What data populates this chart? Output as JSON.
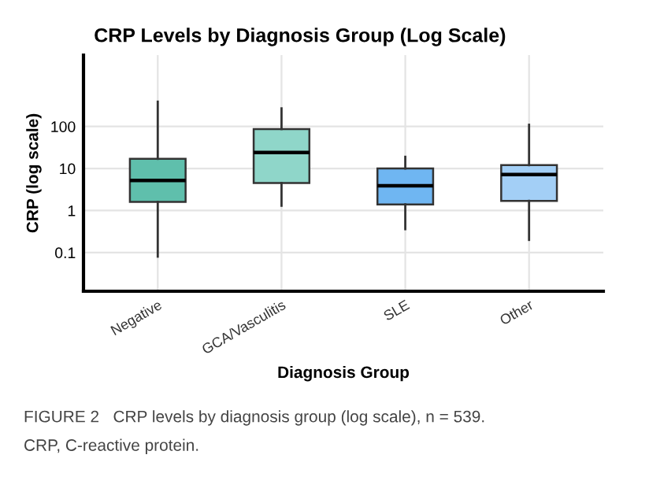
{
  "chart_data": {
    "type": "box",
    "title": "CRP Levels by Diagnosis Group (Log Scale)",
    "xlabel": "Diagnosis Group",
    "ylabel": "CRP (log scale)",
    "categories": [
      "Negative",
      "GCA/Vasculitis",
      "SLE",
      "Other"
    ],
    "colors": [
      "#5fbfac",
      "#8fd6c9",
      "#6fb6f2",
      "#a3cff6"
    ],
    "boxes": [
      {
        "low": 0.08,
        "q1": 1.6,
        "median": 5.2,
        "q3": 17,
        "high": 390
      },
      {
        "low": 1.3,
        "q1": 4.5,
        "median": 24,
        "q3": 87,
        "high": 270
      },
      {
        "low": 0.36,
        "q1": 1.4,
        "median": 3.9,
        "q3": 10,
        "high": 19
      },
      {
        "low": 0.2,
        "q1": 1.7,
        "median": 7.2,
        "q3": 12,
        "high": 110
      }
    ],
    "log": "y",
    "ylim": [
      0.012,
      5000
    ],
    "yticks": [
      0.1,
      1,
      10,
      100
    ],
    "grid": true,
    "annotations": [
      "FIGURE 2   CRP levels by diagnosis group (log scale), n = 539.",
      "CRP, C-reactive protein."
    ]
  }
}
